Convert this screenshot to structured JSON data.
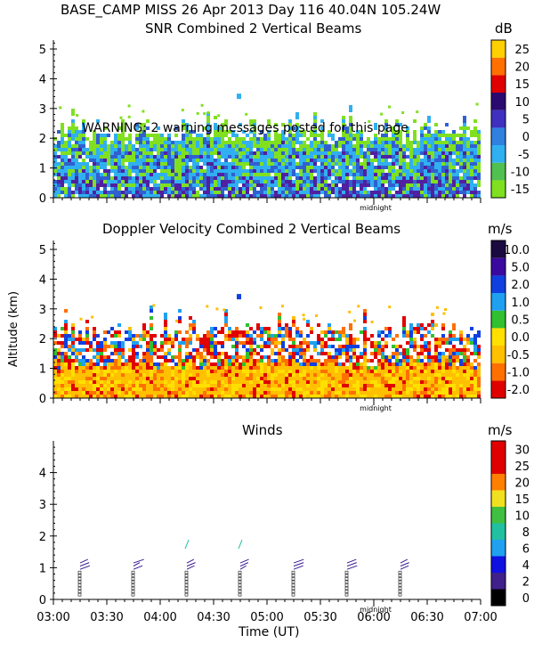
{
  "header": {
    "title": "BASE_CAMP MISS  26 Apr 2013 Day 116 40.04N 105.24W"
  },
  "colors": {
    "snr_palette": [
      "#80e020",
      "#30b0f0",
      "#3060d0",
      "#5020a0",
      "#1a0a50",
      "#e00000",
      "#ff7000",
      "#ffc000"
    ],
    "vel_palette": [
      "#e00000",
      "#ff7000",
      "#ffc000",
      "#ffe000",
      "#30c030",
      "#20a0f0",
      "#1040e0",
      "#3a0aa0",
      "#1a0a40"
    ],
    "wind_palette": [
      "#000000",
      "#40208a",
      "#1010e0",
      "#20a0f0",
      "#20c0a0",
      "#40c040",
      "#f0e020",
      "#ff8000",
      "#e00000"
    ]
  },
  "warning": "WARNING:  2 warning messages posted for this page",
  "midnight_label": "midnight",
  "x_axis_label": "Time (UT)",
  "y_axis_label": "Altitude (km)",
  "chart_data": [
    {
      "type": "heatmap",
      "title": "SNR Combined 2 Vertical Beams",
      "unit": "dB",
      "ylim": [
        0,
        5.3
      ],
      "yticks": [
        "0",
        "1",
        "2",
        "3",
        "4",
        "5"
      ],
      "colorbar_ticks": [
        "-15",
        "-10",
        "-5",
        "0",
        "5",
        "10",
        "15",
        "20",
        "25"
      ],
      "xlim": [
        "03:00",
        "07:00"
      ]
    },
    {
      "type": "heatmap",
      "title": "Doppler Velocity Combined 2 Vertical Beams",
      "unit": "m/s",
      "ylim": [
        0,
        5.3
      ],
      "yticks": [
        "0",
        "1",
        "2",
        "3",
        "4",
        "5"
      ],
      "colorbar_ticks": [
        "-2.0",
        "-1.0",
        "-0.5",
        "0.0",
        "0.5",
        "1.0",
        "2.0",
        "5.0",
        "10.0"
      ],
      "xlim": [
        "03:00",
        "07:00"
      ]
    },
    {
      "type": "scatter",
      "title": "Winds",
      "unit": "m/s",
      "ylim": [
        0,
        5
      ],
      "yticks": [
        "0",
        "1",
        "2",
        "3",
        "4"
      ],
      "colorbar_ticks": [
        "0",
        "2",
        "4",
        "6",
        "8",
        "10",
        "15",
        "20",
        "25",
        "30"
      ],
      "xlim": [
        "03:00",
        "07:00"
      ],
      "xticks": [
        "03:00",
        "03:30",
        "04:00",
        "04:30",
        "05:00",
        "05:30",
        "06:00",
        "06:30",
        "07:00"
      ],
      "profile_times": [
        "03:15",
        "03:45",
        "04:15",
        "04:45",
        "05:15",
        "05:45",
        "06:15"
      ]
    }
  ]
}
